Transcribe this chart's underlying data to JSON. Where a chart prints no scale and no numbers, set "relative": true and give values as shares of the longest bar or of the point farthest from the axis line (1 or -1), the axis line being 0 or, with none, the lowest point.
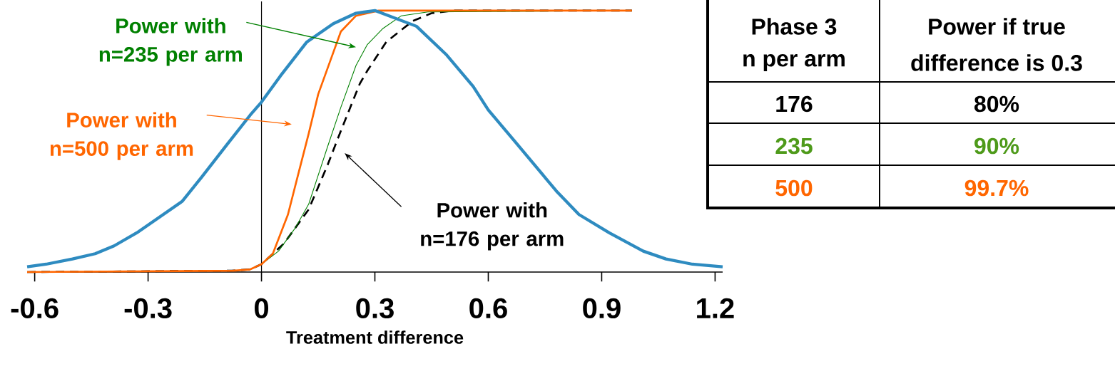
{
  "chart_data": [
    {
      "type": "line",
      "xlabel": "Treatment difference",
      "relative": true,
      "xlim": [
        -0.62,
        1.22
      ],
      "xticks": [
        -0.6,
        -0.3,
        0,
        0.3,
        0.6,
        0.9,
        1.2
      ],
      "series": [
        {
          "name": "Power with n=176 per arm",
          "color": "#000000",
          "line_style": "dashed",
          "x": [
            -0.62,
            -0.08,
            -0.03,
            0,
            0.06,
            0.125,
            0.175,
            0.21,
            0.26,
            0.28,
            0.33,
            0.4,
            0.45,
            0.51,
            0.98
          ],
          "values": [
            0,
            0.005,
            0.01,
            0.03,
            0.11,
            0.24,
            0.41,
            0.54,
            0.72,
            0.77,
            0.88,
            0.96,
            0.99,
            1,
            1
          ]
        },
        {
          "name": "Power with n=235 per arm",
          "color": "#008000",
          "x": [
            -0.03,
            0,
            0.045,
            0.09,
            0.125,
            0.175,
            0.21,
            0.25,
            0.28,
            0.32,
            0.37,
            0.44,
            0.98
          ],
          "values": [
            0.01,
            0.03,
            0.08,
            0.17,
            0.26,
            0.48,
            0.63,
            0.79,
            0.87,
            0.93,
            0.98,
            0.995,
            1
          ]
        },
        {
          "name": "Power with n=500 per arm",
          "color": "#ff6600",
          "x": [
            -0.62,
            -0.075,
            -0.03,
            0,
            0.03,
            0.07,
            0.1,
            0.125,
            0.15,
            0.19,
            0.21,
            0.25,
            0.31,
            0.98
          ],
          "values": [
            0,
            0.005,
            0.01,
            0.03,
            0.07,
            0.22,
            0.39,
            0.53,
            0.68,
            0.84,
            0.92,
            0.98,
            1,
            1
          ]
        },
        {
          "color": "#2e8bc0",
          "x": [
            -0.62,
            -0.57,
            -0.5,
            -0.44,
            -0.39,
            -0.33,
            -0.26,
            -0.21,
            -0.16,
            -0.09,
            -0.03,
            0,
            0.05,
            0.12,
            0.19,
            0.25,
            0.3,
            0.41,
            0.49,
            0.56,
            0.6,
            0.67,
            0.78,
            0.84,
            0.92,
            1.01,
            1.07,
            1.14,
            1.22
          ],
          "values": [
            0.02,
            0.03,
            0.05,
            0.07,
            0.1,
            0.15,
            0.22,
            0.27,
            0.36,
            0.49,
            0.6,
            0.65,
            0.75,
            0.88,
            0.95,
            0.99,
            1,
            0.94,
            0.83,
            0.71,
            0.62,
            0.5,
            0.31,
            0.22,
            0.15,
            0.08,
            0.05,
            0.03,
            0.02
          ]
        }
      ]
    },
    {
      "type": "other",
      "annotations": [
        "Phase 3",
        "n per arm",
        "Power if true",
        "difference is 0.3",
        "176",
        "80%",
        "235",
        "90%",
        "500",
        "99.7%"
      ],
      "colors": [
        "#000000",
        "#000000",
        "#000000",
        "#000000",
        "#000000",
        "#000000",
        "#4e9a1a",
        "#4e9a1a",
        "#ff6600",
        "#ff6600"
      ]
    }
  ]
}
